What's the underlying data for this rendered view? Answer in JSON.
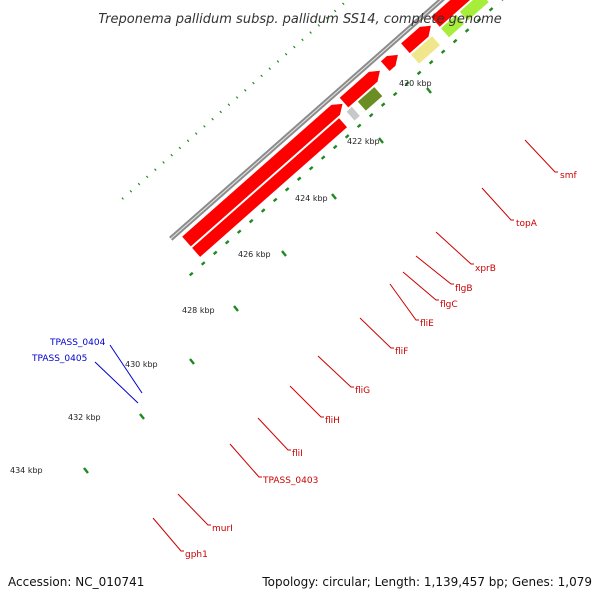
{
  "title": "Treponema pallidum subsp. pallidum SS14, complete genome",
  "footer": {
    "accession": "Accession: NC_010741",
    "summary": "Topology: circular; Length: 1,139,457 bp; Genes: 1,079"
  },
  "ticks": [
    "420 kbp",
    "422 kbp",
    "424 kbp",
    "426 kbp",
    "428 kbp",
    "430 kbp",
    "432 kbp",
    "434 kbp"
  ],
  "gene_labels": [
    "smf",
    "topA",
    "xprB",
    "flgB",
    "flgC",
    "fliE",
    "fliF",
    "fliG",
    "fliH",
    "fliI",
    "TPASS_0403",
    "murI",
    "gph1"
  ],
  "reverse_labels": [
    "TPASS_0404",
    "TPASS_0405"
  ],
  "colors": {
    "backbone": "#8c8c8c",
    "gene": "#ff0000",
    "category_pink": "#ff1493",
    "category_dark_green": "#1f8a1f",
    "category_light_green": "#a6ee3a",
    "category_olive": "#6b8e23",
    "category_khaki": "#f0e68c",
    "category_gray": "#c8c8c8",
    "reverse_blue": "#0000ff",
    "reverse_gray": "#555555",
    "label_red": "#cc0000",
    "label_blue": "#0000cc",
    "tick_green": "#1f8a1f"
  }
}
